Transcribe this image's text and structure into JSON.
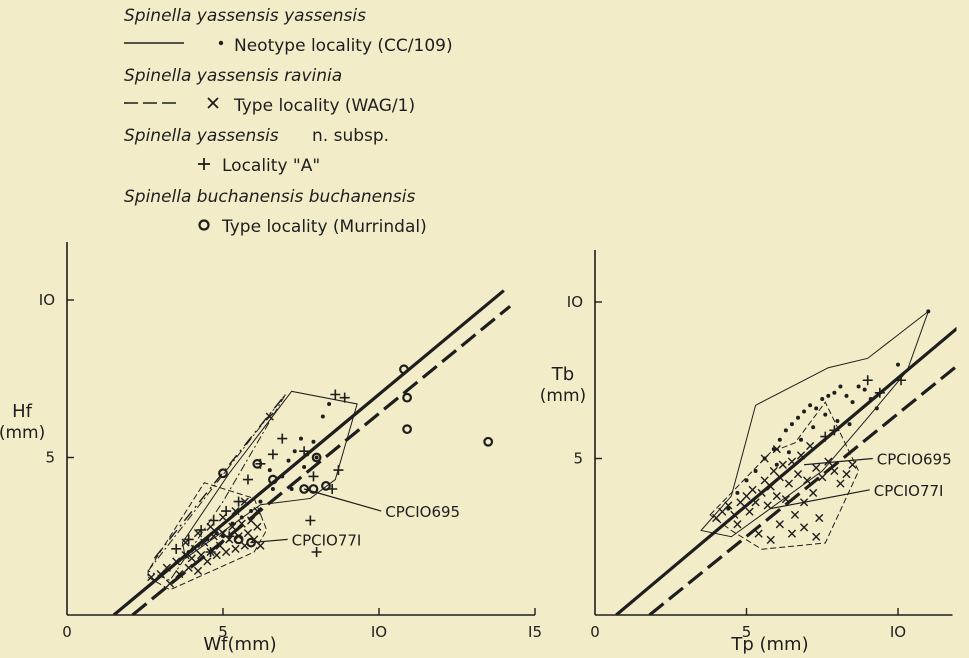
{
  "legend": {
    "sp1": "Spinella yassensis yassensis",
    "sp1_loc": "Neotype locality (CC/109)",
    "sp2": "Spinella yassensis ravinia",
    "sp2_loc": "Type locality (WAG/1)",
    "sp3_a": "Spinella yassensis",
    "sp3_b": "n. subsp.",
    "sp3_loc": "Locality \"A\"",
    "sp4": "Spinella buchanensis buchanensis",
    "sp4_loc": "Type locality (Murrindal)"
  },
  "chart_data": [
    {
      "type": "scatter",
      "xlabel": "Wf(mm)",
      "ylabel": "Hf",
      "ylabel_unit": "(mm)",
      "xlim": [
        0,
        15
      ],
      "ylim": [
        0,
        12
      ],
      "xticks": [
        0,
        5,
        10,
        15
      ],
      "xtick_labels": [
        "0",
        "5",
        "IO",
        "I5"
      ],
      "yticks": [
        5,
        10
      ],
      "ytick_labels": [
        "5",
        "IO"
      ],
      "grid": false,
      "annotations": [
        {
          "label": "CPCIO695",
          "point": [
            7.6,
            4.0
          ],
          "label_at": [
            10.2,
            3.3
          ]
        },
        {
          "label": "CPCIO77I",
          "point": [
            5.9,
            2.3
          ],
          "label_at": [
            7.2,
            2.4
          ]
        }
      ],
      "series": [
        {
          "marker": "dot",
          "line": "solid",
          "regression": [
            [
              1.5,
              0
            ],
            [
              14.0,
              10.3
            ]
          ],
          "hull": [
            [
              3.8,
              1.8
            ],
            [
              6.2,
              3.5
            ],
            [
              7.8,
              3.7
            ],
            [
              8.6,
              4.3
            ],
            [
              9.3,
              6.7
            ],
            [
              7.2,
              7.1
            ],
            [
              5.2,
              4.5
            ],
            [
              3.7,
              2.3
            ]
          ],
          "points": [
            [
              3.9,
              2.0
            ],
            [
              4.2,
              2.2
            ],
            [
              4.5,
              2.4
            ],
            [
              4.8,
              2.6
            ],
            [
              5.0,
              2.5
            ],
            [
              5.3,
              2.9
            ],
            [
              5.6,
              3.1
            ],
            [
              5.9,
              3.3
            ],
            [
              6.2,
              3.6
            ],
            [
              6.6,
              4.0
            ],
            [
              6.9,
              4.4
            ],
            [
              7.1,
              4.9
            ],
            [
              7.3,
              5.2
            ],
            [
              7.5,
              5.6
            ],
            [
              7.7,
              5.1
            ],
            [
              7.9,
              5.5
            ],
            [
              8.2,
              6.3
            ],
            [
              8.4,
              6.7
            ],
            [
              6.5,
              4.6
            ],
            [
              7.2,
              4.0
            ],
            [
              7.6,
              4.7
            ],
            [
              8.0,
              5.0
            ]
          ]
        },
        {
          "marker": "x",
          "line": "dashed",
          "regression": [
            [
              2.1,
              0
            ],
            [
              14.2,
              9.8
            ]
          ],
          "hull": [
            [
              2.6,
              1.2
            ],
            [
              3.3,
              0.8
            ],
            [
              6.0,
              2.0
            ],
            [
              6.4,
              2.7
            ],
            [
              6.0,
              3.7
            ],
            [
              4.4,
              4.2
            ],
            [
              2.6,
              1.4
            ]
          ],
          "points": [
            [
              2.7,
              1.2
            ],
            [
              3.0,
              1.3
            ],
            [
              3.2,
              1.5
            ],
            [
              3.3,
              1.0
            ],
            [
              3.5,
              1.7
            ],
            [
              3.6,
              1.3
            ],
            [
              3.8,
              1.9
            ],
            [
              3.9,
              1.5
            ],
            [
              4.0,
              1.8
            ],
            [
              4.1,
              2.1
            ],
            [
              4.2,
              1.4
            ],
            [
              4.3,
              1.9
            ],
            [
              4.4,
              2.3
            ],
            [
              4.5,
              1.7
            ],
            [
              4.6,
              2.0
            ],
            [
              4.7,
              2.5
            ],
            [
              4.8,
              1.9
            ],
            [
              4.9,
              2.2
            ],
            [
              5.0,
              2.6
            ],
            [
              5.1,
              2.0
            ],
            [
              5.2,
              2.4
            ],
            [
              5.3,
              2.8
            ],
            [
              5.4,
              2.1
            ],
            [
              5.5,
              2.5
            ],
            [
              5.6,
              2.9
            ],
            [
              5.7,
              2.2
            ],
            [
              5.8,
              2.6
            ],
            [
              5.9,
              3.0
            ],
            [
              6.0,
              2.4
            ],
            [
              6.1,
              2.8
            ],
            [
              6.2,
              2.2
            ],
            [
              4.6,
              2.8
            ],
            [
              5.0,
              3.1
            ],
            [
              5.4,
              3.3
            ],
            [
              4.2,
              2.6
            ],
            [
              3.8,
              2.3
            ],
            [
              6.1,
              3.3
            ],
            [
              5.7,
              3.6
            ],
            [
              6.5,
              6.3
            ]
          ]
        },
        {
          "marker": "plus",
          "line": "dash-dot",
          "regression": [
            [
              2.8,
              1.8
            ],
            [
              7.0,
              7.0
            ]
          ],
          "hull": [
            [
              2.6,
              1.4
            ],
            [
              7.0,
              7.0
            ],
            [
              5.0,
              3.6
            ],
            [
              3.3,
              1.1
            ]
          ],
          "points": [
            [
              3.5,
              2.1
            ],
            [
              3.9,
              2.4
            ],
            [
              4.3,
              2.7
            ],
            [
              4.7,
              3.0
            ],
            [
              5.1,
              3.3
            ],
            [
              5.5,
              3.6
            ],
            [
              5.8,
              4.3
            ],
            [
              6.2,
              4.8
            ],
            [
              6.6,
              5.1
            ],
            [
              6.9,
              5.6
            ],
            [
              7.6,
              5.2
            ],
            [
              7.9,
              4.4
            ],
            [
              8.0,
              2.0
            ],
            [
              7.8,
              3.0
            ],
            [
              8.5,
              4.0
            ],
            [
              8.7,
              4.6
            ],
            [
              8.6,
              7.0
            ],
            [
              8.9,
              6.9
            ],
            [
              5.2,
              2.5
            ],
            [
              4.6,
              2.0
            ]
          ]
        },
        {
          "marker": "circle",
          "line": "none",
          "points": [
            [
              5.0,
              4.5
            ],
            [
              5.5,
              2.4
            ],
            [
              5.9,
              2.3
            ],
            [
              6.1,
              4.8
            ],
            [
              6.6,
              4.3
            ],
            [
              7.6,
              4.0
            ],
            [
              7.9,
              4.0
            ],
            [
              8.0,
              5.0
            ],
            [
              8.3,
              4.1
            ],
            [
              10.8,
              7.8
            ],
            [
              10.9,
              6.9
            ],
            [
              10.9,
              5.9
            ],
            [
              13.5,
              5.5
            ]
          ]
        }
      ]
    },
    {
      "type": "scatter",
      "xlabel": "Tp (mm)",
      "ylabel": "Tb",
      "ylabel_unit": "(mm)",
      "xlim": [
        0,
        11.8
      ],
      "ylim": [
        0,
        12
      ],
      "xticks": [
        0,
        5,
        10
      ],
      "xtick_labels": [
        "0",
        "5",
        "IO"
      ],
      "yticks": [
        5,
        10
      ],
      "ytick_labels": [
        "5",
        "IO"
      ],
      "grid": false,
      "annotations": [
        {
          "label": "CPCIO695",
          "point": [
            6.9,
            4.8
          ],
          "label_at": [
            9.3,
            5.0
          ]
        },
        {
          "label": "CPCIO77I",
          "point": [
            5.8,
            3.4
          ],
          "label_at": [
            9.2,
            4.0
          ]
        }
      ],
      "series": [
        {
          "marker": "dot",
          "line": "solid",
          "regression": [
            [
              0.7,
              0
            ],
            [
              12.0,
              9.2
            ]
          ],
          "hull": [
            [
              3.5,
              2.7
            ],
            [
              4.5,
              3.8
            ],
            [
              5.3,
              6.7
            ],
            [
              7.7,
              7.9
            ],
            [
              9.0,
              8.2
            ],
            [
              11.0,
              9.7
            ],
            [
              10.3,
              7.8
            ],
            [
              9.0,
              6.3
            ],
            [
              7.5,
              4.6
            ],
            [
              4.5,
              2.5
            ]
          ],
          "points": [
            [
              4.4,
              3.4
            ],
            [
              4.7,
              3.9
            ],
            [
              5.0,
              4.3
            ],
            [
              5.3,
              4.6
            ],
            [
              5.6,
              5.0
            ],
            [
              5.9,
              5.3
            ],
            [
              6.1,
              5.6
            ],
            [
              6.3,
              5.9
            ],
            [
              6.5,
              6.1
            ],
            [
              6.7,
              6.3
            ],
            [
              6.9,
              6.5
            ],
            [
              7.1,
              6.7
            ],
            [
              7.3,
              6.6
            ],
            [
              7.5,
              6.9
            ],
            [
              7.7,
              7.0
            ],
            [
              7.9,
              7.1
            ],
            [
              8.1,
              7.3
            ],
            [
              8.3,
              7.0
            ],
            [
              8.5,
              6.8
            ],
            [
              8.7,
              7.3
            ],
            [
              8.9,
              7.2
            ],
            [
              9.1,
              6.9
            ],
            [
              9.3,
              6.6
            ],
            [
              6.0,
              4.8
            ],
            [
              6.4,
              5.2
            ],
            [
              6.8,
              5.6
            ],
            [
              7.2,
              6.0
            ],
            [
              7.6,
              6.4
            ],
            [
              8.0,
              6.2
            ],
            [
              8.4,
              6.1
            ],
            [
              10.0,
              8.0
            ],
            [
              11.0,
              9.7
            ]
          ]
        },
        {
          "marker": "x",
          "line": "dashed",
          "regression": [
            [
              1.8,
              0
            ],
            [
              12.0,
              8.0
            ]
          ],
          "hull": [
            [
              3.8,
              3.2
            ],
            [
              5.8,
              5.2
            ],
            [
              6.6,
              5.5
            ],
            [
              7.6,
              6.8
            ],
            [
              8.7,
              4.6
            ],
            [
              7.6,
              2.3
            ],
            [
              5.5,
              2.1
            ],
            [
              4.5,
              2.7
            ]
          ],
          "points": [
            [
              4.0,
              3.1
            ],
            [
              4.2,
              3.3
            ],
            [
              4.4,
              3.5
            ],
            [
              4.6,
              3.2
            ],
            [
              4.8,
              3.6
            ],
            [
              5.0,
              3.8
            ],
            [
              5.1,
              3.3
            ],
            [
              5.2,
              4.0
            ],
            [
              5.3,
              3.6
            ],
            [
              5.5,
              3.9
            ],
            [
              5.6,
              4.3
            ],
            [
              5.7,
              3.5
            ],
            [
              5.8,
              4.1
            ],
            [
              5.9,
              4.6
            ],
            [
              6.0,
              3.8
            ],
            [
              6.1,
              4.4
            ],
            [
              6.2,
              4.8
            ],
            [
              6.3,
              3.7
            ],
            [
              6.4,
              4.2
            ],
            [
              6.5,
              4.9
            ],
            [
              6.6,
              3.2
            ],
            [
              6.7,
              4.5
            ],
            [
              6.8,
              5.1
            ],
            [
              6.9,
              3.6
            ],
            [
              7.0,
              4.3
            ],
            [
              7.1,
              5.4
            ],
            [
              7.2,
              3.9
            ],
            [
              7.3,
              4.7
            ],
            [
              7.4,
              3.1
            ],
            [
              7.5,
              4.4
            ],
            [
              7.7,
              4.9
            ],
            [
              7.9,
              4.6
            ],
            [
              8.1,
              4.2
            ],
            [
              8.3,
              4.5
            ],
            [
              8.5,
              4.8
            ],
            [
              5.4,
              2.6
            ],
            [
              5.8,
              2.4
            ],
            [
              6.1,
              2.9
            ],
            [
              6.5,
              2.6
            ],
            [
              6.9,
              2.8
            ],
            [
              7.3,
              2.5
            ],
            [
              6.0,
              5.3
            ],
            [
              5.6,
              5.0
            ],
            [
              4.7,
              2.9
            ]
          ]
        },
        {
          "marker": "plus",
          "line": "none",
          "points": [
            [
              7.6,
              5.7
            ],
            [
              7.9,
              5.9
            ],
            [
              9.0,
              7.5
            ],
            [
              9.4,
              7.1
            ],
            [
              10.1,
              7.5
            ]
          ]
        }
      ]
    }
  ]
}
